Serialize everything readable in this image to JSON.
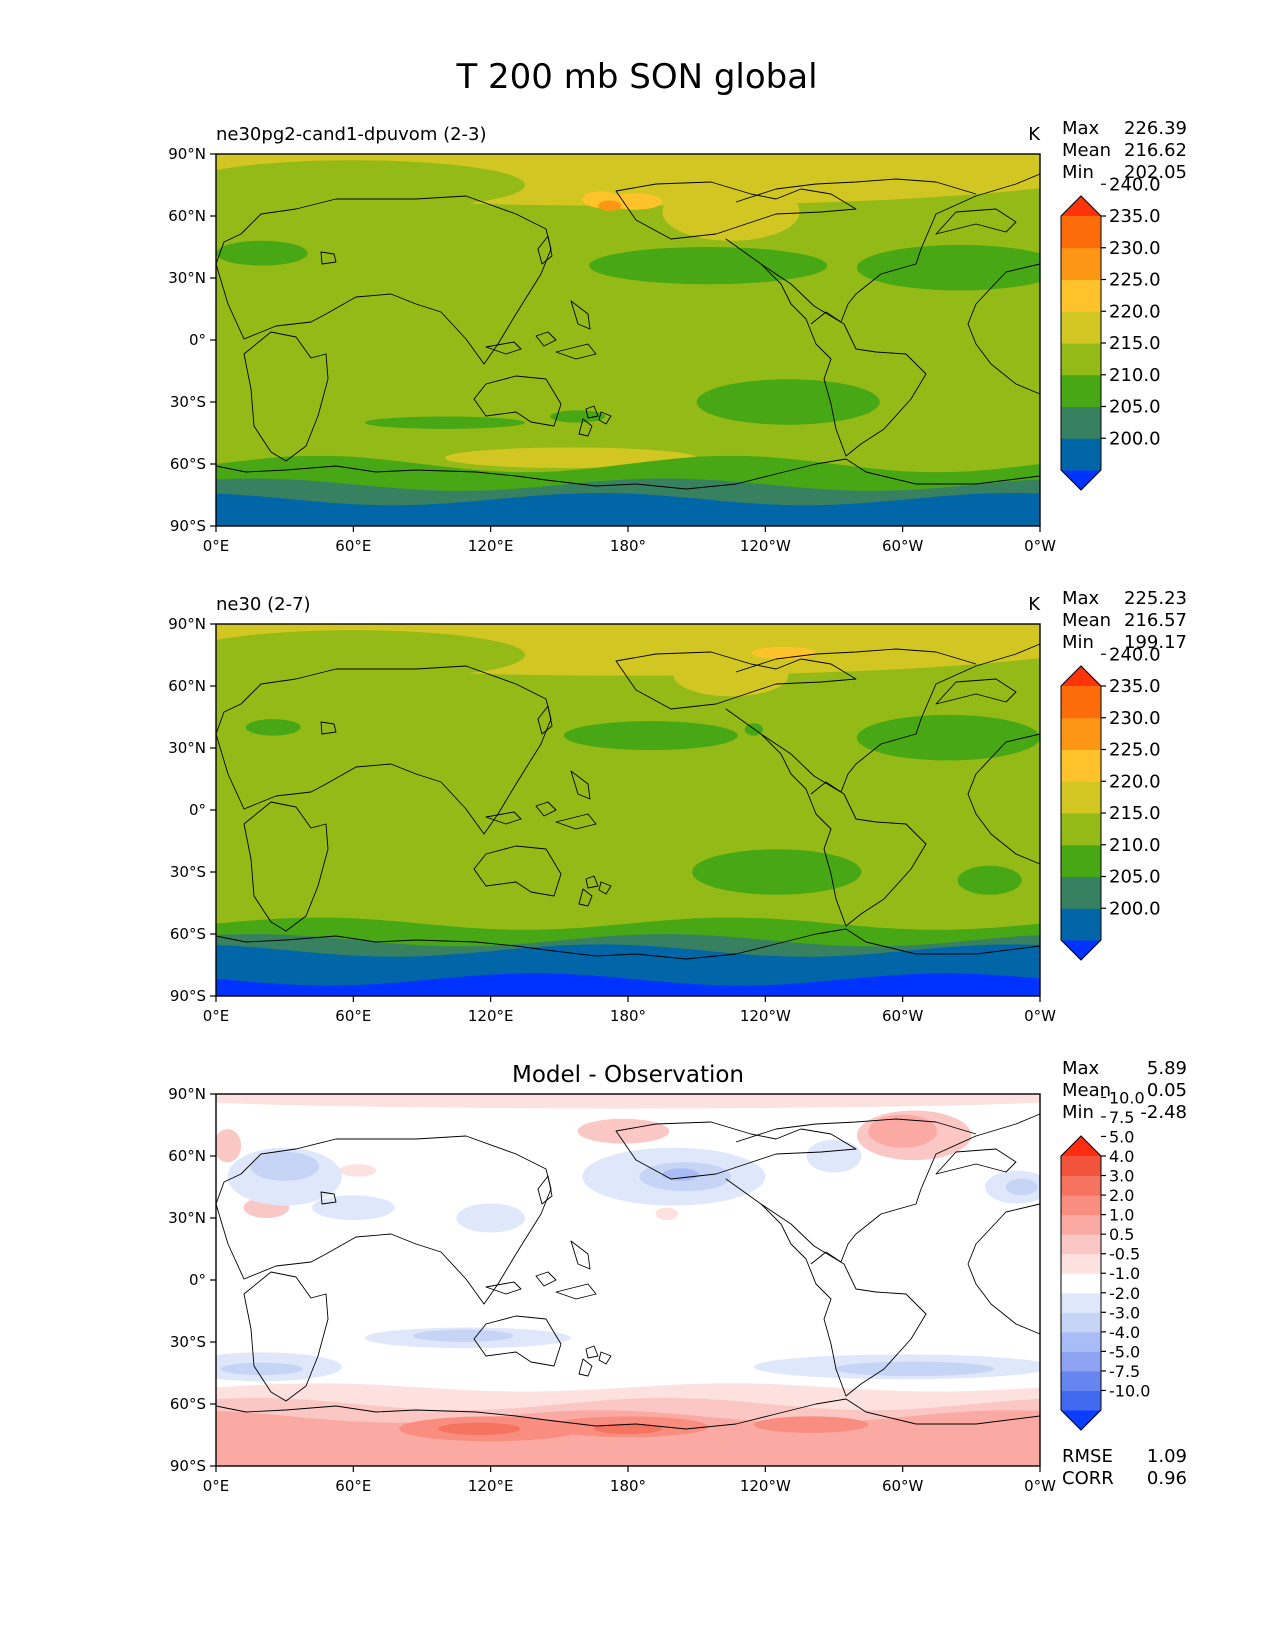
{
  "figure_title": "T 200 mb SON global",
  "colors": {
    "temp_levels": [
      "#0033ff",
      "#0066a8",
      "#378161",
      "#48a714",
      "#94ba18",
      "#d2c622",
      "#fec32b",
      "#fd9614",
      "#fd6c0a",
      "#fd330c"
    ],
    "diff_levels": [
      "#0b3dfe",
      "#4169f0",
      "#6685ef",
      "#8ea3f1",
      "#a9bcf5",
      "#c6d4f6",
      "#dfe7fb",
      "#ffffff",
      "#fde1df",
      "#fbc7c4",
      "#faaaa3",
      "#f88d80",
      "#f5735f",
      "#f1533b",
      "#fe2d12"
    ]
  },
  "chart_data": [
    {
      "type": "heatmap",
      "panel_title": "ne30pg2-cand1-dpuvom (2-3)",
      "units": "K",
      "stats": {
        "max_label": "Max",
        "max": "226.39",
        "mean_label": "Mean",
        "mean": "216.62",
        "min_label": "Min",
        "min": "202.05"
      },
      "colorbar_ticks": [
        "200.0",
        "205.0",
        "210.0",
        "215.0",
        "220.0",
        "225.0",
        "230.0",
        "235.0",
        "240.0"
      ],
      "x_ticks": [
        "0°E",
        "60°E",
        "120°E",
        "180°",
        "120°W",
        "60°W",
        "0°W"
      ],
      "y_ticks": [
        "90°S",
        "60°S",
        "30°S",
        "0°",
        "30°N",
        "60°N",
        "90°N"
      ],
      "xlim": [
        0,
        360
      ],
      "ylim": [
        -90,
        90
      ],
      "regions": [
        {
          "lon": 180,
          "lat": 0,
          "rlon": 180,
          "rlat": 90,
          "level": 4,
          "note": "background 215-220"
        },
        {
          "lon": 180,
          "lat": 85,
          "rlon": 220,
          "rlat": 20,
          "level": 5
        },
        {
          "lon": 60,
          "lat": 75,
          "rlon": 75,
          "rlat": 12,
          "level": 4
        },
        {
          "lon": 225,
          "lat": 62,
          "rlon": 30,
          "rlat": 14,
          "level": 5
        },
        {
          "lon": 183,
          "lat": 67,
          "rlon": 12,
          "rlat": 4,
          "level": 6
        },
        {
          "lon": 168,
          "lat": 68,
          "rlon": 8,
          "rlat": 4,
          "level": 6
        },
        {
          "lon": 172,
          "lat": 65,
          "rlon": 5,
          "rlat": 2.5,
          "level": 7
        },
        {
          "lon": 100,
          "lat": -40,
          "rlon": 35,
          "rlat": 3,
          "level": 3
        },
        {
          "lon": 215,
          "lat": 36,
          "rlon": 52,
          "rlat": 9,
          "level": 3
        },
        {
          "lon": 325,
          "lat": 35,
          "rlon": 45,
          "rlat": 11,
          "level": 3
        },
        {
          "lon": 20,
          "lat": 42,
          "rlon": 20,
          "rlat": 6,
          "level": 3
        },
        {
          "lon": 250,
          "lat": -30,
          "rlon": 40,
          "rlat": 11,
          "level": 3
        },
        {
          "lon": 158,
          "lat": -37,
          "rlon": 12,
          "rlat": 3,
          "level": 3
        },
        {
          "lon": 155,
          "lat": -57,
          "rlon": 55,
          "rlat": 5,
          "level": 5
        }
      ],
      "bands": [
        {
          "lat": -60,
          "level": 3,
          "amp": 4
        },
        {
          "lat": -70,
          "level": 2,
          "amp": 3
        },
        {
          "lat": -77,
          "level": 1,
          "amp": 3
        }
      ]
    },
    {
      "type": "heatmap",
      "panel_title": "ne30 (2-7)",
      "units": "K",
      "stats": {
        "max_label": "Max",
        "max": "225.23",
        "mean_label": "Mean",
        "mean": "216.57",
        "min_label": "Min",
        "min": "199.17"
      },
      "colorbar_ticks": [
        "200.0",
        "205.0",
        "210.0",
        "215.0",
        "220.0",
        "225.0",
        "230.0",
        "235.0",
        "240.0"
      ],
      "x_ticks": [
        "0°E",
        "60°E",
        "120°E",
        "180°",
        "120°W",
        "60°W",
        "0°W"
      ],
      "y_ticks": [
        "90°S",
        "60°S",
        "30°S",
        "0°",
        "30°N",
        "60°N",
        "90°N"
      ],
      "xlim": [
        0,
        360
      ],
      "ylim": [
        -90,
        90
      ],
      "regions": [
        {
          "lon": 180,
          "lat": 0,
          "rlon": 180,
          "rlat": 90,
          "level": 4,
          "note": "background 215-220"
        },
        {
          "lon": 180,
          "lat": 85,
          "rlon": 220,
          "rlat": 20,
          "level": 5
        },
        {
          "lon": 60,
          "lat": 75,
          "rlon": 75,
          "rlat": 12,
          "level": 4
        },
        {
          "lon": 225,
          "lat": 65,
          "rlon": 25,
          "rlat": 10,
          "level": 5
        },
        {
          "lon": 248,
          "lat": 76,
          "rlon": 14,
          "rlat": 3,
          "level": 6
        },
        {
          "lon": 190,
          "lat": 36,
          "rlon": 38,
          "rlat": 7,
          "level": 3
        },
        {
          "lon": 320,
          "lat": 35,
          "rlon": 40,
          "rlat": 11,
          "level": 3
        },
        {
          "lon": 235,
          "lat": 39,
          "rlon": 4,
          "rlat": 3,
          "level": 3
        },
        {
          "lon": 25,
          "lat": 40,
          "rlon": 12,
          "rlat": 4,
          "level": 3
        },
        {
          "lon": 245,
          "lat": -30,
          "rlon": 37,
          "rlat": 11,
          "level": 3
        },
        {
          "lon": 338,
          "lat": -34,
          "rlon": 14,
          "rlat": 7,
          "level": 3
        }
      ],
      "bands": [
        {
          "lat": -55,
          "level": 3,
          "amp": 3
        },
        {
          "lat": -63,
          "level": 2,
          "amp": 3
        },
        {
          "lat": -68,
          "level": 1,
          "amp": 3
        },
        {
          "lat": -82,
          "level": 0,
          "amp": 3
        }
      ]
    },
    {
      "type": "heatmap",
      "panel_title": "Model - Observation",
      "units": "",
      "stats": {
        "max_label": "Max",
        "max": "5.89",
        "mean_label": "Mean",
        "mean": "0.05",
        "min_label": "Min",
        "min": "-2.48"
      },
      "extra_stats": {
        "rmse_label": "RMSE",
        "rmse": "1.09",
        "corr_label": "CORR",
        "corr": "0.96"
      },
      "colorbar_ticks": [
        "-10.0",
        "-7.5",
        "-5.0",
        "-4.0",
        "-3.0",
        "-2.0",
        "-1.0",
        "-0.5",
        "0.5",
        "1.0",
        "2.0",
        "3.0",
        "4.0",
        "5.0",
        "7.5",
        "10.0"
      ],
      "x_ticks": [
        "0°E",
        "60°E",
        "120°E",
        "180°",
        "120°W",
        "60°W",
        "0°W"
      ],
      "y_ticks": [
        "90°S",
        "60°S",
        "30°S",
        "0°",
        "30°N",
        "60°N",
        "90°N"
      ],
      "xlim": [
        0,
        360
      ],
      "ylim": [
        -90,
        90
      ],
      "regions": [
        {
          "lon": 180,
          "lat": 0,
          "rlon": 180,
          "rlat": 90,
          "level": 7,
          "note": "background -0.5-0.5"
        },
        {
          "lon": 180,
          "lat": 88,
          "rlon": 200,
          "rlat": 5,
          "level": 8
        },
        {
          "lon": 305,
          "lat": 70,
          "rlon": 25,
          "rlat": 12,
          "level": 9
        },
        {
          "lon": 300,
          "lat": 72,
          "rlon": 15,
          "rlat": 8,
          "level": 10
        },
        {
          "lon": 178,
          "lat": 72,
          "rlon": 20,
          "rlat": 6,
          "level": 9
        },
        {
          "lon": 5,
          "lat": 65,
          "rlon": 6,
          "rlat": 8,
          "level": 9
        },
        {
          "lon": 22,
          "lat": 35,
          "rlon": 10,
          "rlat": 5,
          "level": 9
        },
        {
          "lon": 62,
          "lat": 53,
          "rlon": 8,
          "rlat": 3,
          "level": 8
        },
        {
          "lon": 197,
          "lat": 32,
          "rlon": 5,
          "rlat": 3,
          "level": 8
        },
        {
          "lon": 30,
          "lat": 50,
          "rlon": 25,
          "rlat": 14,
          "level": 6
        },
        {
          "lon": 30,
          "lat": 55,
          "rlon": 15,
          "rlat": 7,
          "level": 5
        },
        {
          "lon": 200,
          "lat": 50,
          "rlon": 40,
          "rlat": 14,
          "level": 6
        },
        {
          "lon": 205,
          "lat": 50,
          "rlon": 20,
          "rlat": 7,
          "level": 5
        },
        {
          "lon": 203,
          "lat": 51,
          "rlon": 8,
          "rlat": 3,
          "level": 4
        },
        {
          "lon": 350,
          "lat": 45,
          "rlon": 14,
          "rlat": 8,
          "level": 6
        },
        {
          "lon": 352,
          "lat": 45,
          "rlon": 7,
          "rlat": 4,
          "level": 5
        },
        {
          "lon": 60,
          "lat": 35,
          "rlon": 18,
          "rlat": 6,
          "level": 6
        },
        {
          "lon": 120,
          "lat": 30,
          "rlon": 15,
          "rlat": 7,
          "level": 6
        },
        {
          "lon": 270,
          "lat": 60,
          "rlon": 12,
          "rlat": 8,
          "level": 6
        },
        {
          "lon": 110,
          "lat": -28,
          "rlon": 45,
          "rlat": 5,
          "level": 6
        },
        {
          "lon": 108,
          "lat": -27,
          "rlon": 22,
          "rlat": 3,
          "level": 5
        },
        {
          "lon": 20,
          "lat": -42,
          "rlon": 35,
          "rlat": 7,
          "level": 6
        },
        {
          "lon": 20,
          "lat": -43,
          "rlon": 18,
          "rlat": 3,
          "level": 5
        },
        {
          "lon": 300,
          "lat": -42,
          "rlon": 65,
          "rlat": 6,
          "level": 6
        },
        {
          "lon": 305,
          "lat": -43,
          "rlon": 35,
          "rlat": 3.5,
          "level": 5
        }
      ],
      "bands": [
        {
          "lat": -52,
          "level": 8,
          "amp": 2
        },
        {
          "lat": -60,
          "level": 9,
          "amp": 3
        },
        {
          "lat": -66,
          "level": 10,
          "amp": 3
        }
      ],
      "extra_regions": [
        {
          "lon": 120,
          "lat": -72,
          "rlon": 40,
          "rlat": 6,
          "level": 11
        },
        {
          "lon": 180,
          "lat": -71,
          "rlon": 35,
          "rlat": 5,
          "level": 11
        },
        {
          "lon": 115,
          "lat": -72,
          "rlon": 18,
          "rlat": 3,
          "level": 12
        },
        {
          "lon": 180,
          "lat": -72,
          "rlon": 15,
          "rlat": 2.5,
          "level": 12
        },
        {
          "lon": 260,
          "lat": -70,
          "rlon": 25,
          "rlat": 4,
          "level": 11
        }
      ]
    }
  ]
}
